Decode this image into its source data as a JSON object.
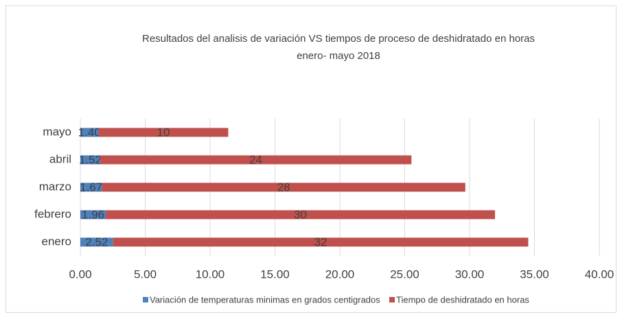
{
  "chart_data": {
    "type": "stacked-barh",
    "title": "Resultados del analisis de variación  VS tiempos de proceso de deshidratado en horas",
    "subtitle": "enero- mayo 2018",
    "categories": [
      "enero",
      "febrero",
      "marzo",
      "abril",
      "mayo"
    ],
    "series": [
      {
        "name": "Variación de temperaturas minimas  en grados centigrados",
        "color": "#4f81bd",
        "values": [
          2.52,
          1.96,
          1.67,
          1.52,
          1.4
        ],
        "value_labels": [
          "2.52",
          "1.96",
          "1.67",
          "1.52",
          "1.40"
        ]
      },
      {
        "name": "Tiempo de deshidratado  en horas",
        "color": "#c0504d",
        "values": [
          32,
          30,
          28,
          24,
          10
        ]
      }
    ],
    "xlim": [
      0,
      40
    ],
    "xticks": [
      {
        "value": 0,
        "label": "0.00"
      },
      {
        "value": 5,
        "label": "5.00"
      },
      {
        "value": 10,
        "label": "10.00"
      },
      {
        "value": 15,
        "label": "15.00"
      },
      {
        "value": 20,
        "label": "20.00"
      },
      {
        "value": 25,
        "label": "25.00"
      },
      {
        "value": 30,
        "label": "30.00"
      },
      {
        "value": 35,
        "label": "35.00"
      },
      {
        "value": 40,
        "label": "40.00"
      }
    ],
    "grid": true,
    "legend": "bottom"
  }
}
